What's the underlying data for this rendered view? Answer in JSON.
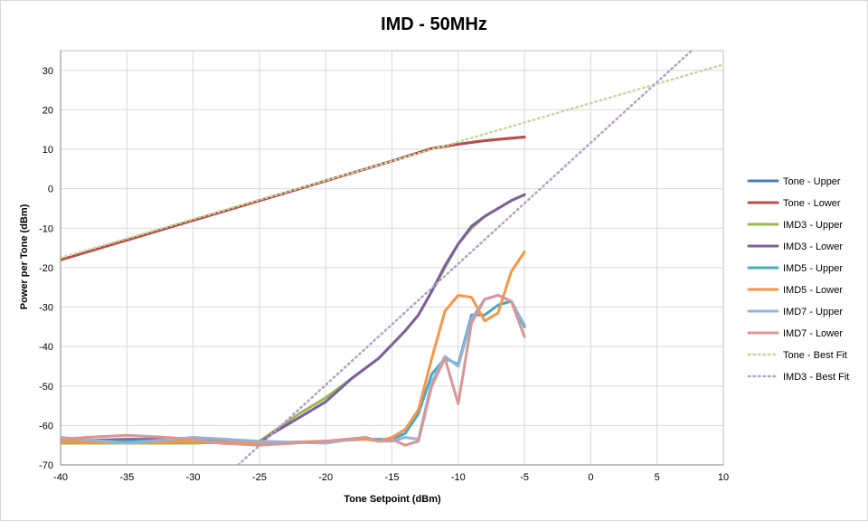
{
  "chart_data": {
    "type": "line",
    "title": "IMD - 50MHz",
    "xlabel": "Tone Setpoint (dBm)",
    "ylabel": "Power per Tone (dBm)",
    "xlim": [
      -40,
      10
    ],
    "ylim": [
      -70,
      35
    ],
    "xticks": [
      -40,
      -35,
      -30,
      -25,
      -20,
      -15,
      -10,
      -5,
      0,
      5,
      10
    ],
    "yticks": [
      -70,
      -60,
      -50,
      -40,
      -30,
      -20,
      -10,
      0,
      10,
      20,
      30
    ],
    "grid": true,
    "legend_position": "right",
    "series": [
      {
        "name": "Tone - Upper",
        "color": "#4a7ebb",
        "style": "solid",
        "x": [
          -40,
          -35,
          -30,
          -25,
          -20,
          -15,
          -12,
          -10,
          -8,
          -6,
          -5
        ],
        "y": [
          -18,
          -13,
          -8,
          -3,
          2,
          7,
          10.2,
          11.3,
          12.2,
          12.8,
          13.1
        ]
      },
      {
        "name": "Tone - Lower",
        "color": "#be4b48",
        "style": "solid",
        "x": [
          -40,
          -35,
          -30,
          -25,
          -20,
          -15,
          -12,
          -10,
          -8,
          -6,
          -5
        ],
        "y": [
          -18,
          -13,
          -8,
          -3,
          2,
          7,
          10.2,
          11.3,
          12.2,
          12.8,
          13.1
        ]
      },
      {
        "name": "IMD3 - Upper",
        "color": "#98b954",
        "style": "solid",
        "x": [
          -40,
          -35,
          -30,
          -25,
          -22,
          -20,
          -18,
          -16,
          -14,
          -13,
          -12,
          -11,
          -10,
          -9,
          -8,
          -7,
          -6,
          -5
        ],
        "y": [
          -64.5,
          -64.5,
          -64.5,
          -64,
          -57,
          -53,
          -48,
          -43,
          -36,
          -32,
          -26,
          -20,
          -14,
          -10,
          -7,
          -5,
          -3,
          -1.5
        ]
      },
      {
        "name": "IMD3 - Lower",
        "color": "#7d5fa0",
        "style": "solid",
        "x": [
          -40,
          -35,
          -30,
          -25,
          -24,
          -22,
          -20,
          -18,
          -16,
          -14,
          -13,
          -12,
          -11,
          -10,
          -9,
          -8,
          -7,
          -6,
          -5
        ],
        "y": [
          -64,
          -63.5,
          -63.5,
          -64.5,
          -62,
          -58,
          -54,
          -48,
          -43,
          -36,
          -32,
          -26,
          -19.5,
          -14,
          -9.5,
          -7,
          -5,
          -3,
          -1.5
        ]
      },
      {
        "name": "IMD5 - Upper",
        "color": "#46aac5",
        "style": "solid",
        "x": [
          -40,
          -35,
          -30,
          -25,
          -20,
          -17,
          -15,
          -14,
          -13,
          -12,
          -11,
          -10,
          -9,
          -8,
          -7,
          -6,
          -5
        ],
        "y": [
          -64,
          -64,
          -63.5,
          -64.5,
          -64,
          -63.5,
          -63.5,
          -62,
          -57,
          -47,
          -43,
          -44.5,
          -32,
          -32,
          -29.5,
          -28.5,
          -35
        ]
      },
      {
        "name": "IMD5 - Lower",
        "color": "#f79646",
        "style": "solid",
        "x": [
          -40,
          -35,
          -30,
          -25,
          -20,
          -17,
          -16,
          -15,
          -14,
          -13,
          -12,
          -11,
          -10,
          -9,
          -8,
          -7,
          -6,
          -5
        ],
        "y": [
          -64,
          -64.5,
          -64,
          -64.5,
          -64,
          -63.5,
          -64,
          -63,
          -61,
          -56,
          -43,
          -31,
          -27,
          -27.5,
          -33.5,
          -31.5,
          -21,
          -16
        ]
      },
      {
        "name": "IMD7 - Upper",
        "color": "#95b3d7",
        "style": "solid",
        "x": [
          -40,
          -35,
          -30,
          -25,
          -20,
          -17,
          -16,
          -15,
          -14,
          -13,
          -12,
          -11,
          -10,
          -9,
          -8,
          -7,
          -6,
          -5
        ],
        "y": [
          -63,
          -64.5,
          -63,
          -64,
          -64.5,
          -63,
          -64,
          -64,
          -63,
          -63.5,
          -49,
          -42.5,
          -45,
          -33,
          -28,
          -27,
          -28.5,
          -34.5
        ]
      },
      {
        "name": "IMD7 - Lower",
        "color": "#d99694",
        "style": "solid",
        "x": [
          -40,
          -38,
          -35,
          -32,
          -30,
          -28,
          -25,
          -20,
          -17,
          -16,
          -15,
          -14,
          -13,
          -12,
          -11,
          -10,
          -9,
          -8,
          -7,
          -6,
          -5
        ],
        "y": [
          -63.5,
          -63,
          -62.5,
          -63,
          -63.5,
          -64.5,
          -65,
          -64,
          -63,
          -64,
          -63.5,
          -65,
          -64,
          -50,
          -43,
          -54.5,
          -34,
          -28,
          -27,
          -28.5,
          -37.5
        ]
      },
      {
        "name": "Tone - Best Fit",
        "color": "#c4d79b",
        "style": "dotted",
        "x": [
          -40,
          10
        ],
        "y": [
          -17.5,
          31.5
        ]
      },
      {
        "name": "IMD3 - Best Fit",
        "color": "#b1a0c7",
        "style": "dotted",
        "x": [
          -26.6,
          7.6
        ],
        "y": [
          -70,
          35
        ]
      }
    ]
  }
}
